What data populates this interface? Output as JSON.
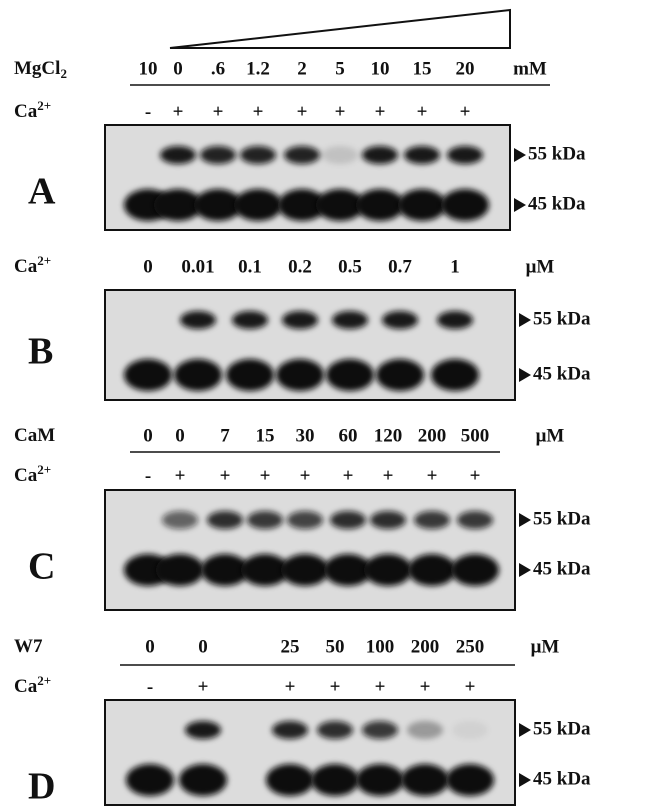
{
  "panels": [
    {
      "letter": "A",
      "condition": {
        "label": "MgCl",
        "label_sub": "2",
        "values": [
          "10",
          "0",
          ".6",
          "1.2",
          "2",
          "5",
          "10",
          "15",
          "20"
        ],
        "unit": "mM"
      },
      "calcium": {
        "label": "Ca",
        "label_sup": "2+",
        "signs": [
          "-",
          "+",
          "+",
          "+",
          "+",
          "+",
          "+",
          "+",
          "+"
        ]
      },
      "markers": [
        "55 kDa",
        "45 kDa"
      ]
    },
    {
      "letter": "B",
      "condition": {
        "label": "Ca",
        "label_sup": "2+",
        "values": [
          "0",
          "0.01",
          "0.1",
          "0.2",
          "0.5",
          "0.7",
          "1"
        ],
        "unit": "μM"
      },
      "markers": [
        "55 kDa",
        "45 kDa"
      ]
    },
    {
      "letter": "C",
      "condition": {
        "label": "CaM",
        "values": [
          "0",
          "0",
          "7",
          "15",
          "30",
          "60",
          "120",
          "200",
          "500"
        ],
        "unit": "μM"
      },
      "calcium": {
        "label": "Ca",
        "label_sup": "2+",
        "signs": [
          "-",
          "+",
          "+",
          "+",
          "+",
          "+",
          "+",
          "+",
          "+"
        ]
      },
      "markers": [
        "55 kDa",
        "45 kDa"
      ]
    },
    {
      "letter": "D",
      "condition": {
        "label": "W7",
        "values": [
          "0",
          "0",
          "25",
          "50",
          "100",
          "200",
          "250"
        ],
        "unit": "μM"
      },
      "calcium": {
        "label": "Ca",
        "label_sup": "2+",
        "signs": [
          "-",
          "+",
          "+",
          "+",
          "+",
          "+",
          "+"
        ]
      },
      "markers": [
        "55 kDa",
        "45 kDa"
      ]
    }
  ]
}
